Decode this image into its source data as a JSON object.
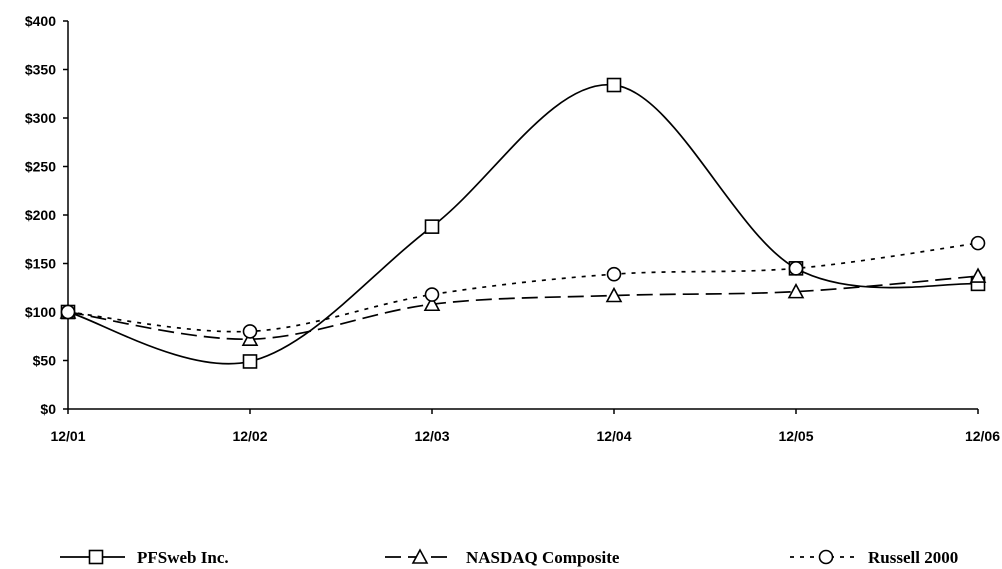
{
  "chart_data": {
    "type": "line",
    "title": "",
    "xlabel": "",
    "ylabel": "",
    "categories": [
      "12/01",
      "12/02",
      "12/03",
      "12/04",
      "12/05",
      "12/06"
    ],
    "y_ticks": [
      "$0",
      "$50",
      "$100",
      "$150",
      "$200",
      "$250",
      "$300",
      "$350",
      "$400"
    ],
    "ylim": [
      0,
      400
    ],
    "grid": false,
    "legend_position": "bottom",
    "series": [
      {
        "name": "PFSweb Inc.",
        "values": [
          100,
          49,
          188,
          334,
          145,
          129
        ],
        "marker": "square",
        "dash": "solid",
        "color": "#000000"
      },
      {
        "name": "NASDAQ Composite",
        "values": [
          100,
          72,
          108,
          117,
          121,
          137
        ],
        "marker": "triangle",
        "dash": "long-dash",
        "color": "#000000"
      },
      {
        "name": "Russell 2000",
        "values": [
          100,
          80,
          118,
          139,
          145,
          171
        ],
        "marker": "circle",
        "dash": "dotted",
        "color": "#000000"
      }
    ]
  }
}
